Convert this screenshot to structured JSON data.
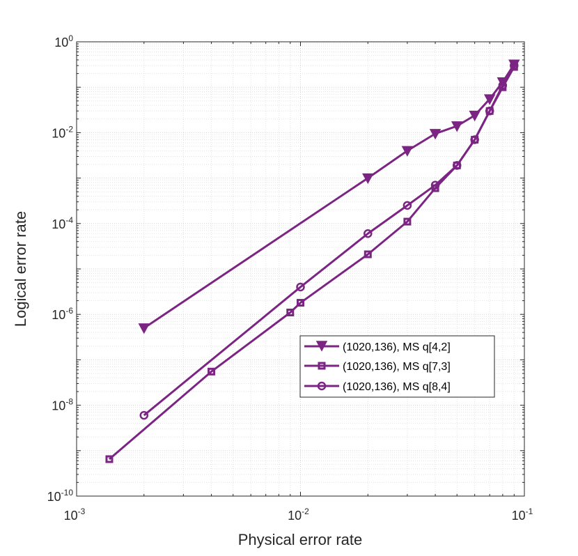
{
  "chart_data": {
    "type": "line",
    "x_scale": "log",
    "y_scale": "log",
    "title": "",
    "xlabel": "Physical error rate",
    "ylabel": "Logical error rate",
    "xlim": [
      0.001,
      0.1
    ],
    "ylim": [
      1e-10,
      1
    ],
    "grid": true,
    "minor_grid": true,
    "legend_position": "lower-right",
    "x_ticks": [
      {
        "base": "10",
        "exp": "-3"
      },
      {
        "base": "10",
        "exp": "-2"
      },
      {
        "base": "10",
        "exp": "-1"
      }
    ],
    "y_ticks": [
      {
        "base": "10",
        "exp": "-10"
      },
      {
        "base": "10",
        "exp": "-8"
      },
      {
        "base": "10",
        "exp": "-6"
      },
      {
        "base": "10",
        "exp": "-4"
      },
      {
        "base": "10",
        "exp": "-2"
      },
      {
        "base": "10",
        "exp": "0"
      }
    ],
    "colors": {
      "series": "#7B2483",
      "grid": "#cfcfcf",
      "axis": "#262626"
    },
    "series": [
      {
        "name": "(1020,136), MS q[4,2]",
        "marker": "triangle-down",
        "x": [
          0.002,
          0.02,
          0.03,
          0.04,
          0.05,
          0.06,
          0.07,
          0.08,
          0.09
        ],
        "y": [
          5e-07,
          0.001,
          0.004,
          0.0095,
          0.014,
          0.024,
          0.055,
          0.13,
          0.32
        ]
      },
      {
        "name": "(1020,136), MS q[7,3]",
        "marker": "square",
        "x": [
          0.0014,
          0.004,
          0.009,
          0.01,
          0.02,
          0.03,
          0.04,
          0.05,
          0.06,
          0.07,
          0.08,
          0.09
        ],
        "y": [
          6.5e-10,
          5.5e-08,
          1.1e-06,
          1.8e-06,
          2.1e-05,
          0.00011,
          0.0006,
          0.0019,
          0.007,
          0.03,
          0.1,
          0.28
        ]
      },
      {
        "name": "(1020,136), MS q[8,4]",
        "marker": "circle",
        "x": [
          0.002,
          0.01,
          0.02,
          0.03,
          0.04,
          0.05,
          0.06,
          0.07,
          0.08,
          0.09
        ],
        "y": [
          6e-09,
          4e-06,
          6e-05,
          0.00025,
          0.0007,
          0.0019,
          0.007,
          0.03,
          0.11,
          0.3
        ]
      }
    ]
  }
}
